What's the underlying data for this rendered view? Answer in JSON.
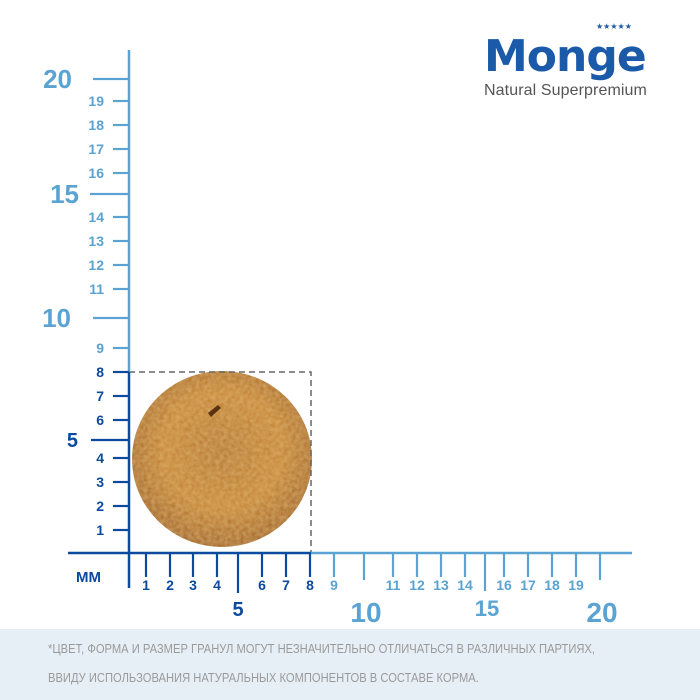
{
  "brand": {
    "name": "Monge",
    "tagline": "Natural Superpremium",
    "color": "#1a5aa8"
  },
  "unit_label": "ММ",
  "colors": {
    "dark_blue": "#0b4a9e",
    "light_blue": "#5aa3d2",
    "kibble": "#b8741f",
    "footer_bg": "#e7eff6"
  },
  "kibble_size_mm": {
    "width": 8,
    "height": 8
  },
  "vertical_ruler": {
    "minor_labels": [
      "1",
      "2",
      "3",
      "4",
      "6",
      "7",
      "8",
      "9",
      "11",
      "12",
      "13",
      "14",
      "16",
      "17",
      "18",
      "19"
    ],
    "major_labels": [
      "5",
      "10",
      "15",
      "20"
    ]
  },
  "horizontal_ruler": {
    "minor_labels": [
      "1",
      "2",
      "3",
      "4",
      "6",
      "7",
      "8",
      "9",
      "11",
      "12",
      "13",
      "14",
      "16",
      "17",
      "18",
      "19"
    ],
    "major_labels": [
      "5",
      "10",
      "15",
      "20"
    ]
  },
  "footer": {
    "line1": "*ЦВЕТ, ФОРМА И РАЗМЕР ГРАНУЛ МОГУТ НЕЗНАЧИТЕЛЬНО ОТЛИЧАТЬСЯ В РАЗЛИЧНЫХ ПАРТИЯХ,",
    "line2": "ВВИДУ ИСПОЛЬЗОВАНИЯ НАТУРАЛЬНЫХ КОМПОНЕНТОВ В СОСТАВЕ КОРМА."
  }
}
